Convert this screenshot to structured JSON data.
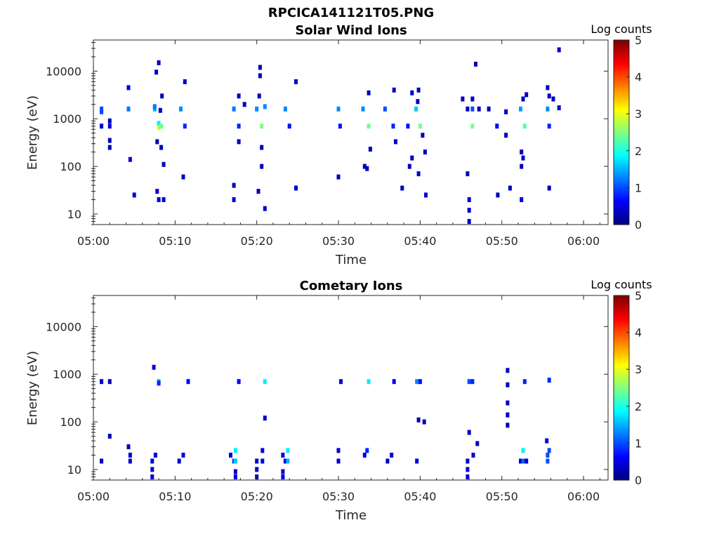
{
  "figure_title": "RPCICA141121T05.PNG",
  "colormap": {
    "name": "jet",
    "stops": [
      "#000080",
      "#0000ff",
      "#0080ff",
      "#00ffff",
      "#80ff80",
      "#ffff00",
      "#ff8000",
      "#ff0000",
      "#800000"
    ]
  },
  "chart_data": [
    {
      "type": "heatmap",
      "title": "Solar Wind Ions",
      "xlabel": "Time",
      "ylabel": "Energy (eV)",
      "xlim_minutes": [
        0,
        63
      ],
      "x_ticks": [
        {
          "minute": 0,
          "label": "05:00"
        },
        {
          "minute": 10,
          "label": "05:10"
        },
        {
          "minute": 20,
          "label": "05:20"
        },
        {
          "minute": 30,
          "label": "05:30"
        },
        {
          "minute": 40,
          "label": "05:40"
        },
        {
          "minute": 50,
          "label": "05:50"
        },
        {
          "minute": 60,
          "label": "06:00"
        }
      ],
      "y_scale": "log",
      "ylim": [
        6,
        45000
      ],
      "y_ticks": [
        {
          "value": 10,
          "label": "10"
        },
        {
          "value": 100,
          "label": "100"
        },
        {
          "value": 1000,
          "label": "1000"
        },
        {
          "value": 10000,
          "label": "10000"
        }
      ],
      "colorbar": {
        "label": "Log counts",
        "range": [
          0,
          5
        ],
        "ticks": [
          "0",
          "1",
          "2",
          "3",
          "4",
          "5"
        ]
      },
      "cells": [
        {
          "t": 1.0,
          "e": 1600,
          "c": 1.0
        },
        {
          "t": 1.0,
          "e": 1400,
          "c": 1.0
        },
        {
          "t": 1.0,
          "e": 700,
          "c": 0.4
        },
        {
          "t": 2.0,
          "e": 700,
          "c": 0.4
        },
        {
          "t": 2.0,
          "e": 900,
          "c": 0.3
        },
        {
          "t": 2.0,
          "e": 350,
          "c": 0.3
        },
        {
          "t": 2.0,
          "e": 250,
          "c": 0.3
        },
        {
          "t": 4.3,
          "e": 1600,
          "c": 1.2
        },
        {
          "t": 4.3,
          "e": 4500,
          "c": 0.5
        },
        {
          "t": 4.5,
          "e": 140,
          "c": 0.4
        },
        {
          "t": 5.0,
          "e": 25,
          "c": 0.4
        },
        {
          "t": 7.5,
          "e": 1600,
          "c": 1.5
        },
        {
          "t": 7.5,
          "e": 1800,
          "c": 1.2
        },
        {
          "t": 7.7,
          "e": 9500,
          "c": 0.3
        },
        {
          "t": 7.8,
          "e": 330,
          "c": 0.3
        },
        {
          "t": 8.0,
          "e": 800,
          "c": 1.8
        },
        {
          "t": 8.0,
          "e": 650,
          "c": 2.9
        },
        {
          "t": 8.3,
          "e": 700,
          "c": 2.4
        },
        {
          "t": 8.2,
          "e": 1500,
          "c": 0.4
        },
        {
          "t": 8.0,
          "e": 15000,
          "c": 0.3
        },
        {
          "t": 8.4,
          "e": 3000,
          "c": 0.3
        },
        {
          "t": 8.6,
          "e": 110,
          "c": 0.3
        },
        {
          "t": 8.0,
          "e": 20,
          "c": 0.4
        },
        {
          "t": 8.6,
          "e": 20,
          "c": 0.4
        },
        {
          "t": 7.8,
          "e": 30,
          "c": 0.4
        },
        {
          "t": 8.3,
          "e": 250,
          "c": 0.3
        },
        {
          "t": 10.7,
          "e": 1600,
          "c": 1.3
        },
        {
          "t": 11.2,
          "e": 700,
          "c": 0.8
        },
        {
          "t": 11.2,
          "e": 6000,
          "c": 0.3
        },
        {
          "t": 11.0,
          "e": 60,
          "c": 0.3
        },
        {
          "t": 17.2,
          "e": 1600,
          "c": 1.2
        },
        {
          "t": 17.8,
          "e": 3000,
          "c": 0.3
        },
        {
          "t": 17.8,
          "e": 700,
          "c": 0.8
        },
        {
          "t": 17.8,
          "e": 330,
          "c": 0.3
        },
        {
          "t": 17.2,
          "e": 40,
          "c": 0.3
        },
        {
          "t": 17.2,
          "e": 20,
          "c": 0.4
        },
        {
          "t": 18.5,
          "e": 2000,
          "c": 0.3
        },
        {
          "t": 20.0,
          "e": 1600,
          "c": 1.3
        },
        {
          "t": 20.3,
          "e": 3000,
          "c": 0.3
        },
        {
          "t": 20.6,
          "e": 700,
          "c": 2.5
        },
        {
          "t": 20.4,
          "e": 12000,
          "c": 0.3
        },
        {
          "t": 20.4,
          "e": 8000,
          "c": 0.3
        },
        {
          "t": 20.2,
          "e": 30,
          "c": 0.3
        },
        {
          "t": 20.6,
          "e": 250,
          "c": 0.3
        },
        {
          "t": 20.6,
          "e": 100,
          "c": 0.3
        },
        {
          "t": 21.0,
          "e": 13,
          "c": 0.4
        },
        {
          "t": 21.0,
          "e": 1800,
          "c": 1.3
        },
        {
          "t": 23.5,
          "e": 1600,
          "c": 1.3
        },
        {
          "t": 24.0,
          "e": 700,
          "c": 0.7
        },
        {
          "t": 24.8,
          "e": 6000,
          "c": 0.3
        },
        {
          "t": 24.8,
          "e": 35,
          "c": 0.3
        },
        {
          "t": 30.0,
          "e": 1600,
          "c": 1.3
        },
        {
          "t": 30.2,
          "e": 700,
          "c": 0.7
        },
        {
          "t": 30.0,
          "e": 60,
          "c": 0.3
        },
        {
          "t": 33.0,
          "e": 1600,
          "c": 1.3
        },
        {
          "t": 33.7,
          "e": 700,
          "c": 2.4
        },
        {
          "t": 33.7,
          "e": 3500,
          "c": 0.3
        },
        {
          "t": 33.2,
          "e": 100,
          "c": 0.3
        },
        {
          "t": 33.9,
          "e": 230,
          "c": 0.3
        },
        {
          "t": 33.5,
          "e": 90,
          "c": 0.3
        },
        {
          "t": 35.7,
          "e": 1600,
          "c": 1.0
        },
        {
          "t": 36.7,
          "e": 700,
          "c": 0.8
        },
        {
          "t": 36.8,
          "e": 4000,
          "c": 0.3
        },
        {
          "t": 37.0,
          "e": 330,
          "c": 0.3
        },
        {
          "t": 37.8,
          "e": 35,
          "c": 0.3
        },
        {
          "t": 38.5,
          "e": 700,
          "c": 0.7
        },
        {
          "t": 39.0,
          "e": 3500,
          "c": 0.3
        },
        {
          "t": 38.7,
          "e": 100,
          "c": 0.3
        },
        {
          "t": 39.5,
          "e": 1600,
          "c": 1.6
        },
        {
          "t": 40.0,
          "e": 700,
          "c": 2.5
        },
        {
          "t": 39.7,
          "e": 2300,
          "c": 0.3
        },
        {
          "t": 39.8,
          "e": 4000,
          "c": 0.3
        },
        {
          "t": 40.3,
          "e": 450,
          "c": 0.3
        },
        {
          "t": 39.8,
          "e": 70,
          "c": 0.4
        },
        {
          "t": 40.7,
          "e": 25,
          "c": 0.4
        },
        {
          "t": 40.6,
          "e": 200,
          "c": 0.3
        },
        {
          "t": 39.0,
          "e": 150,
          "c": 0.3
        },
        {
          "t": 45.2,
          "e": 2600,
          "c": 0.3
        },
        {
          "t": 45.8,
          "e": 1600,
          "c": 0.3
        },
        {
          "t": 46.4,
          "e": 700,
          "c": 2.5
        },
        {
          "t": 45.8,
          "e": 70,
          "c": 0.3
        },
        {
          "t": 46.0,
          "e": 20,
          "c": 0.4
        },
        {
          "t": 46.0,
          "e": 12,
          "c": 0.4
        },
        {
          "t": 46.0,
          "e": 7,
          "c": 0.4
        },
        {
          "t": 46.4,
          "e": 2600,
          "c": 0.3
        },
        {
          "t": 46.4,
          "e": 1600,
          "c": 1.0
        },
        {
          "t": 46.8,
          "e": 14000,
          "c": 0.3
        },
        {
          "t": 47.2,
          "e": 1600,
          "c": 0.3
        },
        {
          "t": 48.4,
          "e": 1600,
          "c": 0.3
        },
        {
          "t": 49.4,
          "e": 700,
          "c": 0.6
        },
        {
          "t": 50.5,
          "e": 1400,
          "c": 0.3
        },
        {
          "t": 50.5,
          "e": 450,
          "c": 0.3
        },
        {
          "t": 49.5,
          "e": 25,
          "c": 0.3
        },
        {
          "t": 51.0,
          "e": 35,
          "c": 0.3
        },
        {
          "t": 52.3,
          "e": 1600,
          "c": 1.4
        },
        {
          "t": 52.8,
          "e": 700,
          "c": 2.3
        },
        {
          "t": 52.6,
          "e": 2600,
          "c": 0.3
        },
        {
          "t": 53.0,
          "e": 3200,
          "c": 0.3
        },
        {
          "t": 52.4,
          "e": 200,
          "c": 0.3
        },
        {
          "t": 52.6,
          "e": 150,
          "c": 0.3
        },
        {
          "t": 52.4,
          "e": 100,
          "c": 0.3
        },
        {
          "t": 52.4,
          "e": 20,
          "c": 0.4
        },
        {
          "t": 55.6,
          "e": 1600,
          "c": 1.3
        },
        {
          "t": 55.8,
          "e": 700,
          "c": 0.8
        },
        {
          "t": 55.6,
          "e": 4500,
          "c": 0.3
        },
        {
          "t": 55.8,
          "e": 3000,
          "c": 0.3
        },
        {
          "t": 56.3,
          "e": 2600,
          "c": 0.3
        },
        {
          "t": 57.0,
          "e": 1700,
          "c": 0.3
        },
        {
          "t": 55.8,
          "e": 35,
          "c": 0.3
        },
        {
          "t": 57.0,
          "e": 28000,
          "c": 0.3
        }
      ]
    },
    {
      "type": "heatmap",
      "title": "Cometary Ions",
      "xlabel": "Time",
      "ylabel": "Energy (eV)",
      "xlim_minutes": [
        0,
        63
      ],
      "x_ticks": [
        {
          "minute": 0,
          "label": "05:00"
        },
        {
          "minute": 10,
          "label": "05:10"
        },
        {
          "minute": 20,
          "label": "05:20"
        },
        {
          "minute": 30,
          "label": "05:30"
        },
        {
          "minute": 40,
          "label": "05:40"
        },
        {
          "minute": 50,
          "label": "05:50"
        },
        {
          "minute": 60,
          "label": "06:00"
        }
      ],
      "y_scale": "log",
      "ylim": [
        6,
        45000
      ],
      "y_ticks": [
        {
          "value": 10,
          "label": "10"
        },
        {
          "value": 100,
          "label": "100"
        },
        {
          "value": 1000,
          "label": "1000"
        },
        {
          "value": 10000,
          "label": "10000"
        }
      ],
      "colorbar": {
        "label": "Log counts",
        "range": [
          0,
          5
        ],
        "ticks": [
          "0",
          "1",
          "2",
          "3",
          "4",
          "5"
        ]
      },
      "cells": [
        {
          "t": 1.0,
          "e": 700,
          "c": 0.3
        },
        {
          "t": 2.0,
          "e": 700,
          "c": 0.3
        },
        {
          "t": 2.0,
          "e": 50,
          "c": 0.3
        },
        {
          "t": 1.0,
          "e": 15,
          "c": 0.3
        },
        {
          "t": 4.3,
          "e": 30,
          "c": 0.3
        },
        {
          "t": 4.5,
          "e": 20,
          "c": 0.4
        },
        {
          "t": 4.5,
          "e": 15,
          "c": 0.4
        },
        {
          "t": 7.4,
          "e": 1400,
          "c": 0.5
        },
        {
          "t": 7.2,
          "e": 15,
          "c": 0.5
        },
        {
          "t": 7.2,
          "e": 10,
          "c": 0.4
        },
        {
          "t": 7.2,
          "e": 7,
          "c": 0.4
        },
        {
          "t": 7.6,
          "e": 20,
          "c": 0.4
        },
        {
          "t": 8.0,
          "e": 700,
          "c": 1.5
        },
        {
          "t": 8.0,
          "e": 650,
          "c": 0.8
        },
        {
          "t": 10.5,
          "e": 15,
          "c": 0.4
        },
        {
          "t": 11.0,
          "e": 20,
          "c": 0.4
        },
        {
          "t": 11.6,
          "e": 700,
          "c": 0.6
        },
        {
          "t": 16.8,
          "e": 20,
          "c": 0.4
        },
        {
          "t": 17.2,
          "e": 15,
          "c": 1.0
        },
        {
          "t": 17.4,
          "e": 25,
          "c": 1.8
        },
        {
          "t": 17.4,
          "e": 15,
          "c": 1.6
        },
        {
          "t": 17.4,
          "e": 9,
          "c": 0.4
        },
        {
          "t": 17.4,
          "e": 7,
          "c": 0.4
        },
        {
          "t": 17.8,
          "e": 700,
          "c": 0.6
        },
        {
          "t": 20.0,
          "e": 15,
          "c": 0.4
        },
        {
          "t": 20.0,
          "e": 10,
          "c": 0.4
        },
        {
          "t": 20.0,
          "e": 7,
          "c": 0.4
        },
        {
          "t": 20.7,
          "e": 25,
          "c": 0.4
        },
        {
          "t": 20.7,
          "e": 15,
          "c": 0.5
        },
        {
          "t": 21.0,
          "e": 700,
          "c": 1.8
        },
        {
          "t": 21.0,
          "e": 120,
          "c": 0.3
        },
        {
          "t": 23.2,
          "e": 20,
          "c": 0.4
        },
        {
          "t": 23.5,
          "e": 15,
          "c": 0.6
        },
        {
          "t": 23.8,
          "e": 25,
          "c": 1.8
        },
        {
          "t": 23.8,
          "e": 15,
          "c": 1.5
        },
        {
          "t": 23.2,
          "e": 9,
          "c": 0.4
        },
        {
          "t": 23.2,
          "e": 7,
          "c": 0.4
        },
        {
          "t": 30.0,
          "e": 25,
          "c": 0.4
        },
        {
          "t": 30.0,
          "e": 15,
          "c": 0.4
        },
        {
          "t": 30.3,
          "e": 700,
          "c": 0.5
        },
        {
          "t": 33.2,
          "e": 20,
          "c": 0.5
        },
        {
          "t": 33.5,
          "e": 25,
          "c": 0.8
        },
        {
          "t": 33.7,
          "e": 700,
          "c": 1.8
        },
        {
          "t": 36.0,
          "e": 15,
          "c": 0.4
        },
        {
          "t": 36.5,
          "e": 20,
          "c": 0.4
        },
        {
          "t": 36.8,
          "e": 700,
          "c": 0.6
        },
        {
          "t": 39.6,
          "e": 15,
          "c": 0.4
        },
        {
          "t": 39.6,
          "e": 700,
          "c": 1.3
        },
        {
          "t": 40.0,
          "e": 700,
          "c": 0.7
        },
        {
          "t": 39.8,
          "e": 110,
          "c": 0.3
        },
        {
          "t": 40.5,
          "e": 100,
          "c": 0.3
        },
        {
          "t": 45.8,
          "e": 15,
          "c": 0.4
        },
        {
          "t": 45.8,
          "e": 10,
          "c": 0.4
        },
        {
          "t": 45.8,
          "e": 7,
          "c": 0.4
        },
        {
          "t": 46.0,
          "e": 60,
          "c": 0.3
        },
        {
          "t": 46.0,
          "e": 700,
          "c": 1.0
        },
        {
          "t": 46.4,
          "e": 700,
          "c": 0.8
        },
        {
          "t": 46.5,
          "e": 20,
          "c": 0.4
        },
        {
          "t": 47.0,
          "e": 35,
          "c": 0.3
        },
        {
          "t": 50.7,
          "e": 1200,
          "c": 0.3
        },
        {
          "t": 50.7,
          "e": 600,
          "c": 0.3
        },
        {
          "t": 50.7,
          "e": 250,
          "c": 0.3
        },
        {
          "t": 50.7,
          "e": 140,
          "c": 0.3
        },
        {
          "t": 50.7,
          "e": 85,
          "c": 0.3
        },
        {
          "t": 52.3,
          "e": 15,
          "c": 0.4
        },
        {
          "t": 52.6,
          "e": 25,
          "c": 1.8
        },
        {
          "t": 52.6,
          "e": 15,
          "c": 1.1
        },
        {
          "t": 52.8,
          "e": 700,
          "c": 0.8
        },
        {
          "t": 53.0,
          "e": 15,
          "c": 0.4
        },
        {
          "t": 55.5,
          "e": 40,
          "c": 0.4
        },
        {
          "t": 55.6,
          "e": 20,
          "c": 1.0
        },
        {
          "t": 55.6,
          "e": 15,
          "c": 1.0
        },
        {
          "t": 55.8,
          "e": 25,
          "c": 1.0
        },
        {
          "t": 55.8,
          "e": 750,
          "c": 0.8
        }
      ]
    }
  ]
}
